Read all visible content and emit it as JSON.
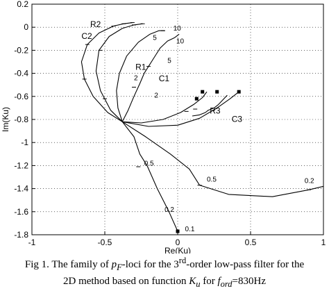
{
  "chart_data": {
    "type": "line",
    "title": "",
    "xlabel": "Re(Ku)",
    "ylabel": "Im(Ku)",
    "xlim": [
      -1,
      1
    ],
    "ylim": [
      -1.8,
      0.2
    ],
    "xticks": [
      "-1",
      "-0.5",
      "0",
      "0.5",
      "1"
    ],
    "yticks": [
      "0.2",
      "0",
      "-0.2",
      "-0.4",
      "-0.6",
      "-0.8",
      "-1",
      "-1.2",
      "-1.4",
      "-1.6",
      "-1.8"
    ],
    "grid": true,
    "series": [
      {
        "name": "R2",
        "x": [
          -0.38,
          -0.48,
          -0.58,
          -0.64,
          -0.66,
          -0.62,
          -0.54,
          -0.44,
          -0.37,
          -0.31
        ],
        "y": [
          -0.82,
          -0.74,
          -0.6,
          -0.45,
          -0.3,
          -0.15,
          -0.05,
          0.01,
          0.03,
          0.04
        ]
      },
      {
        "name": "C2",
        "x": [
          -0.38,
          -0.46,
          -0.53,
          -0.56,
          -0.54,
          -0.47,
          -0.38,
          -0.3,
          -0.24
        ],
        "y": [
          -0.82,
          -0.72,
          -0.55,
          -0.38,
          -0.2,
          -0.08,
          -0.01,
          0.02,
          0.03
        ]
      },
      {
        "name": "R1",
        "x": [
          -0.38,
          -0.41,
          -0.42,
          -0.4,
          -0.35,
          -0.27,
          -0.19,
          -0.13,
          -0.09
        ],
        "y": [
          -0.82,
          -0.7,
          -0.55,
          -0.4,
          -0.25,
          -0.13,
          -0.06,
          -0.03,
          -0.03
        ]
      },
      {
        "name": "C1",
        "x": [
          -0.38,
          -0.34,
          -0.3,
          -0.26,
          -0.23,
          -0.2,
          -0.18,
          -0.15,
          -0.12,
          -0.07,
          -0.02,
          0.01
        ],
        "y": [
          -0.82,
          -0.72,
          -0.6,
          -0.49,
          -0.4,
          -0.34,
          -0.3,
          -0.24,
          -0.18,
          -0.12,
          -0.09,
          -0.06
        ]
      },
      {
        "name": "R3",
        "x": [
          -0.38,
          -0.25,
          -0.1,
          0.02,
          0.11,
          0.17,
          0.2
        ],
        "y": [
          -0.82,
          -0.83,
          -0.8,
          -0.74,
          -0.67,
          -0.61,
          -0.56
        ]
      },
      {
        "name": "C3",
        "x": [
          -0.38,
          -0.2,
          0.0,
          0.15,
          0.27,
          0.36,
          0.42
        ],
        "y": [
          -0.82,
          -0.86,
          -0.85,
          -0.79,
          -0.7,
          -0.62,
          -0.56
        ]
      },
      {
        "name": "",
        "x": [
          -0.38,
          -0.3,
          -0.26,
          -0.21,
          -0.14,
          -0.06,
          0.0
        ],
        "y": [
          -0.82,
          -0.95,
          -1.1,
          -1.2,
          -1.4,
          -1.6,
          -1.77
        ]
      },
      {
        "name": "",
        "x": [
          -0.38,
          -0.22,
          -0.05,
          0.08,
          0.15,
          0.35,
          0.65,
          0.9,
          1.0
        ],
        "y": [
          -0.82,
          -0.95,
          -1.1,
          -1.23,
          -1.37,
          -1.45,
          -1.47,
          -1.41,
          -1.38
        ]
      },
      {
        "name": "",
        "x": [
          0.1,
          0.15,
          0.19,
          0.21,
          0.25,
          0.28,
          0.31,
          0.34
        ],
        "y": [
          -0.77,
          -0.76,
          -0.74,
          -0.72,
          -0.7,
          -0.67,
          -0.63,
          -0.59
        ]
      }
    ],
    "annotations": [
      {
        "text": "R2",
        "x": -0.6,
        "y": 0.0
      },
      {
        "text": "C2",
        "x": -0.66,
        "y": -0.1
      },
      {
        "text": "R1",
        "x": -0.29,
        "y": -0.37
      },
      {
        "text": "C1",
        "x": -0.13,
        "y": -0.47
      },
      {
        "text": "R3",
        "x": 0.22,
        "y": -0.75
      },
      {
        "text": "C3",
        "x": 0.37,
        "y": -0.82
      },
      {
        "text": "10",
        "x": -0.03,
        "y": -0.03
      },
      {
        "text": "10",
        "x": -0.01,
        "y": -0.14
      },
      {
        "text": "5",
        "x": -0.17,
        "y": -0.11
      },
      {
        "text": "5",
        "x": -0.07,
        "y": -0.31
      },
      {
        "text": "2",
        "x": -0.3,
        "y": -0.46
      },
      {
        "text": "2",
        "x": -0.16,
        "y": -0.61
      },
      {
        "text": "0.5",
        "x": -0.23,
        "y": -1.2
      },
      {
        "text": "0.2",
        "x": -0.09,
        "y": -1.6
      },
      {
        "text": "0.1",
        "x": 0.05,
        "y": -1.77
      },
      {
        "text": "0.5",
        "x": 0.2,
        "y": -1.34
      },
      {
        "text": "0.2",
        "x": 0.87,
        "y": -1.35
      }
    ]
  },
  "caption": {
    "line1_pre": "Fig 1. The family of ",
    "line1_sym": "p",
    "line1_sub": "F",
    "line1_mid": "-loci for the 3",
    "line1_sup": "rd",
    "line1_post": "-order low-pass filter for the",
    "line2_pre": "2D method based on function ",
    "line2_sym": "K",
    "line2_sub": "u",
    "line2_mid": " for ",
    "line2_sym2": "f",
    "line2_sub2": "ord",
    "line2_post": "=830Hz"
  }
}
